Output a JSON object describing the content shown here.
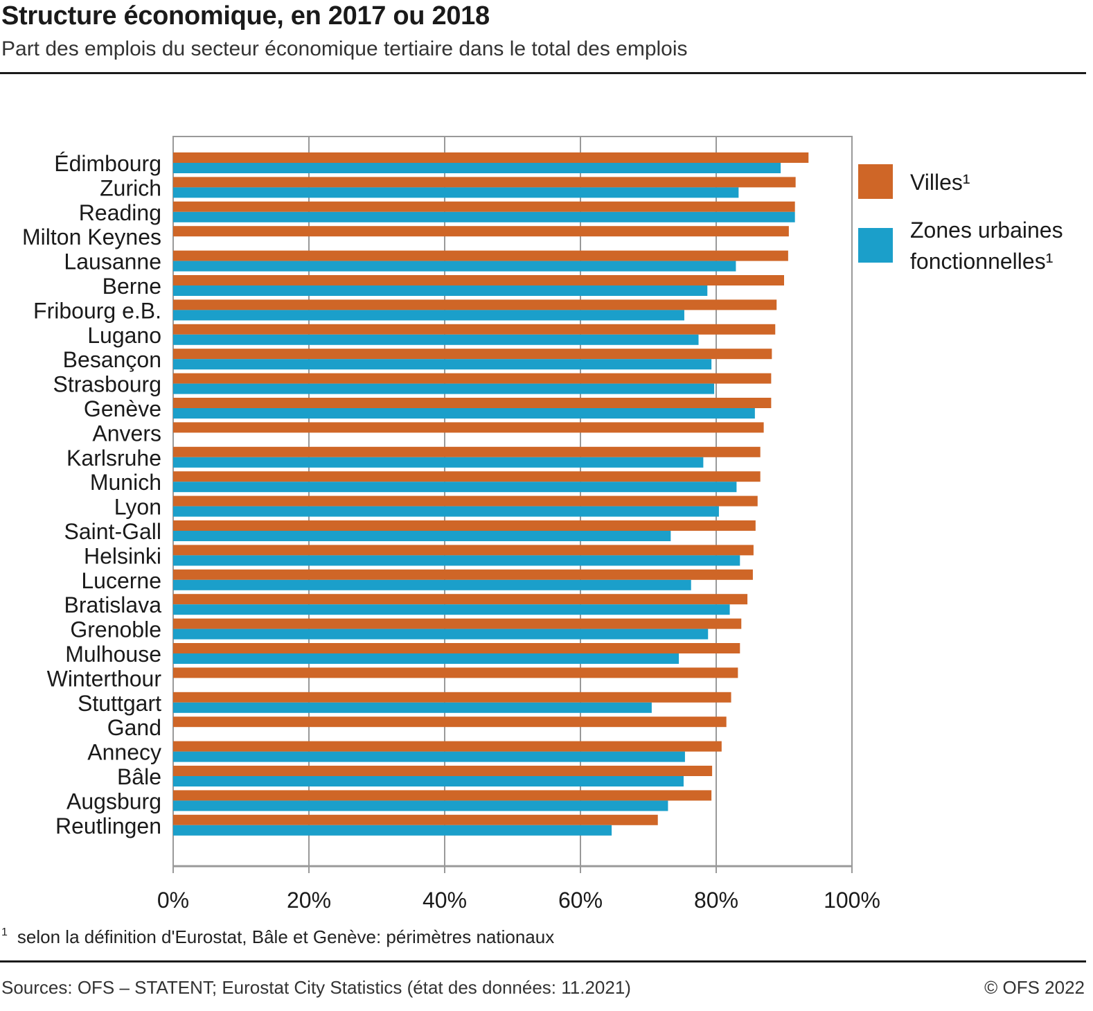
{
  "header": {
    "title": "Structure économique, en 2017 ou 2018",
    "subtitle": "Part des emplois du secteur économique tertiaire dans le total des emplois"
  },
  "footer": {
    "footnote_marker": "1",
    "footnote": "selon la définition d'Eurostat, Bâle et Genève: périmètres nationaux",
    "sources": "Sources: OFS – STATENT; Eurostat City Statistics (état des données: 11.2021)",
    "copyright": "© OFS 2022"
  },
  "colors": {
    "villes": "#cf6627",
    "zones": "#1b9fca",
    "grid": "#999999"
  },
  "chart_data": {
    "type": "bar",
    "orientation": "horizontal",
    "title": "Structure économique, en 2017 ou 2018",
    "subtitle": "Part des emplois du secteur économique tertiaire dans le total des emplois",
    "xlabel": "",
    "ylabel": "",
    "xlim": [
      0,
      100
    ],
    "x_ticks": [
      "0%",
      "20%",
      "40%",
      "60%",
      "80%",
      "100%"
    ],
    "x_tick_values": [
      0,
      20,
      40,
      60,
      80,
      100
    ],
    "grid": true,
    "legend_position": "right",
    "categories": [
      "Édimbourg",
      "Zurich",
      "Reading",
      "Milton Keynes",
      "Lausanne",
      "Berne",
      "Fribourg e.B.",
      "Lugano",
      "Besançon",
      "Strasbourg",
      "Genève",
      "Anvers",
      "Karlsruhe",
      "Munich",
      "Lyon",
      "Saint-Gall",
      "Helsinki",
      "Lucerne",
      "Bratislava",
      "Grenoble",
      "Mulhouse",
      "Winterthour",
      "Stuttgart",
      "Gand",
      "Annecy",
      "Bâle",
      "Augsburg",
      "Reutlingen"
    ],
    "series": [
      {
        "name": "Villes¹",
        "color": "#cf6627",
        "values": [
          93.6,
          91.7,
          91.6,
          90.7,
          90.6,
          90.0,
          88.9,
          88.7,
          88.2,
          88.1,
          88.1,
          87.0,
          86.5,
          86.5,
          86.1,
          85.8,
          85.5,
          85.4,
          84.6,
          83.7,
          83.5,
          83.2,
          82.2,
          81.5,
          80.8,
          79.4,
          79.3,
          71.4
        ]
      },
      {
        "name": "Zones urbaines fonctionnelles¹",
        "color": "#1b9fca",
        "values": [
          89.5,
          83.3,
          91.6,
          null,
          82.9,
          78.7,
          75.3,
          77.4,
          79.3,
          79.7,
          85.7,
          null,
          78.1,
          83.0,
          80.4,
          73.3,
          83.5,
          76.3,
          82.0,
          78.8,
          74.5,
          null,
          70.5,
          null,
          75.4,
          75.2,
          72.9,
          64.6
        ]
      }
    ],
    "legend": {
      "villes_label": "Villes¹",
      "zones_label_line1": "Zones urbaines",
      "zones_label_line2": "fonctionnelles¹"
    }
  }
}
